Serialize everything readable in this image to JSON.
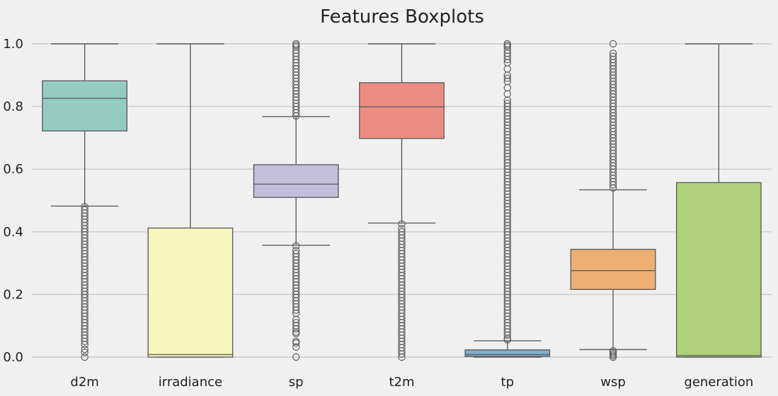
{
  "chart_data": {
    "type": "boxplot",
    "title": "Features Boxplots",
    "xlabel": "",
    "ylabel": "",
    "ylim": [
      0.0,
      1.0
    ],
    "yticks": [
      "0.0",
      "0.2",
      "0.4",
      "0.6",
      "0.8",
      "1.0"
    ],
    "grid": "horizontal",
    "categories": [
      "d2m",
      "irradiance",
      "sp",
      "t2m",
      "tp",
      "wsp",
      "generation"
    ],
    "colors": [
      "#95cbc1",
      "#f6f6bd",
      "#c2bedb",
      "#ec8d82",
      "#80aecf",
      "#edb072",
      "#afd179"
    ],
    "boxes": [
      {
        "name": "d2m",
        "whisker_low": 0.482,
        "q1": 0.722,
        "median": 0.826,
        "q3": 0.882,
        "whisker_high": 1.0,
        "outliers": [
          0.48,
          0.47,
          0.46,
          0.45,
          0.44,
          0.43,
          0.42,
          0.41,
          0.4,
          0.39,
          0.38,
          0.37,
          0.36,
          0.35,
          0.34,
          0.33,
          0.32,
          0.31,
          0.3,
          0.29,
          0.28,
          0.27,
          0.26,
          0.25,
          0.24,
          0.23,
          0.22,
          0.21,
          0.2,
          0.19,
          0.18,
          0.17,
          0.16,
          0.15,
          0.14,
          0.13,
          0.12,
          0.11,
          0.1,
          0.09,
          0.08,
          0.07,
          0.06,
          0.05,
          0.04,
          0.025,
          0.015,
          0.0
        ]
      },
      {
        "name": "irradiance",
        "whisker_low": 0.0,
        "q1": 0.0,
        "median": 0.008,
        "q3": 0.412,
        "whisker_high": 1.0,
        "outliers": []
      },
      {
        "name": "sp",
        "whisker_low": 0.357,
        "q1": 0.51,
        "median": 0.552,
        "q3": 0.614,
        "whisker_high": 0.768,
        "outliers": [
          1.0,
          0.995,
          0.99,
          0.98,
          0.97,
          0.96,
          0.95,
          0.94,
          0.93,
          0.92,
          0.91,
          0.9,
          0.89,
          0.88,
          0.87,
          0.86,
          0.85,
          0.84,
          0.83,
          0.82,
          0.81,
          0.8,
          0.79,
          0.78,
          0.77,
          0.355,
          0.34,
          0.33,
          0.32,
          0.31,
          0.3,
          0.29,
          0.28,
          0.27,
          0.26,
          0.25,
          0.24,
          0.23,
          0.22,
          0.21,
          0.2,
          0.19,
          0.18,
          0.17,
          0.16,
          0.15,
          0.14,
          0.12,
          0.11,
          0.1,
          0.09,
          0.08,
          0.075,
          0.05,
          0.045,
          0.032,
          0.0
        ]
      },
      {
        "name": "t2m",
        "whisker_low": 0.428,
        "q1": 0.698,
        "median": 0.799,
        "q3": 0.876,
        "whisker_high": 1.0,
        "outliers": [
          0.425,
          0.41,
          0.4,
          0.39,
          0.38,
          0.37,
          0.36,
          0.35,
          0.34,
          0.33,
          0.32,
          0.31,
          0.3,
          0.29,
          0.28,
          0.27,
          0.26,
          0.25,
          0.24,
          0.23,
          0.22,
          0.21,
          0.2,
          0.19,
          0.18,
          0.17,
          0.16,
          0.15,
          0.14,
          0.13,
          0.12,
          0.11,
          0.1,
          0.09,
          0.08,
          0.07,
          0.06,
          0.05,
          0.04,
          0.03,
          0.02,
          0.01,
          0.0
        ]
      },
      {
        "name": "tp",
        "whisker_low": 0.0,
        "q1": 0.002,
        "median": 0.008,
        "q3": 0.023,
        "whisker_high": 0.052,
        "outliers": [
          1.0,
          0.995,
          0.99,
          0.98,
          0.97,
          0.96,
          0.95,
          0.94,
          0.92,
          0.9,
          0.89,
          0.88,
          0.86,
          0.84,
          0.82,
          0.81,
          0.8,
          0.79,
          0.78,
          0.77,
          0.76,
          0.75,
          0.74,
          0.73,
          0.72,
          0.71,
          0.7,
          0.69,
          0.68,
          0.67,
          0.66,
          0.65,
          0.64,
          0.63,
          0.62,
          0.61,
          0.6,
          0.59,
          0.58,
          0.57,
          0.56,
          0.55,
          0.54,
          0.53,
          0.52,
          0.51,
          0.5,
          0.49,
          0.48,
          0.47,
          0.46,
          0.45,
          0.44,
          0.43,
          0.42,
          0.41,
          0.4,
          0.39,
          0.38,
          0.37,
          0.36,
          0.35,
          0.34,
          0.33,
          0.32,
          0.31,
          0.3,
          0.29,
          0.28,
          0.27,
          0.26,
          0.25,
          0.24,
          0.23,
          0.22,
          0.21,
          0.2,
          0.19,
          0.18,
          0.17,
          0.16,
          0.15,
          0.14,
          0.13,
          0.12,
          0.11,
          0.1,
          0.09,
          0.08,
          0.07,
          0.06,
          0.055
        ]
      },
      {
        "name": "wsp",
        "whisker_low": 0.024,
        "q1": 0.216,
        "median": 0.276,
        "q3": 0.344,
        "whisker_high": 0.534,
        "outliers": [
          1.0,
          0.97,
          0.96,
          0.95,
          0.94,
          0.93,
          0.92,
          0.91,
          0.9,
          0.89,
          0.88,
          0.87,
          0.86,
          0.85,
          0.84,
          0.83,
          0.82,
          0.81,
          0.8,
          0.79,
          0.78,
          0.77,
          0.76,
          0.75,
          0.74,
          0.73,
          0.72,
          0.71,
          0.7,
          0.69,
          0.68,
          0.67,
          0.66,
          0.65,
          0.64,
          0.63,
          0.62,
          0.61,
          0.6,
          0.59,
          0.58,
          0.57,
          0.56,
          0.55,
          0.54,
          0.02,
          0.015,
          0.01,
          0.005,
          0.0
        ]
      },
      {
        "name": "generation",
        "whisker_low": 0.0,
        "q1": 0.0,
        "median": 0.005,
        "q3": 0.557,
        "whisker_high": 1.0,
        "outliers": []
      }
    ]
  }
}
